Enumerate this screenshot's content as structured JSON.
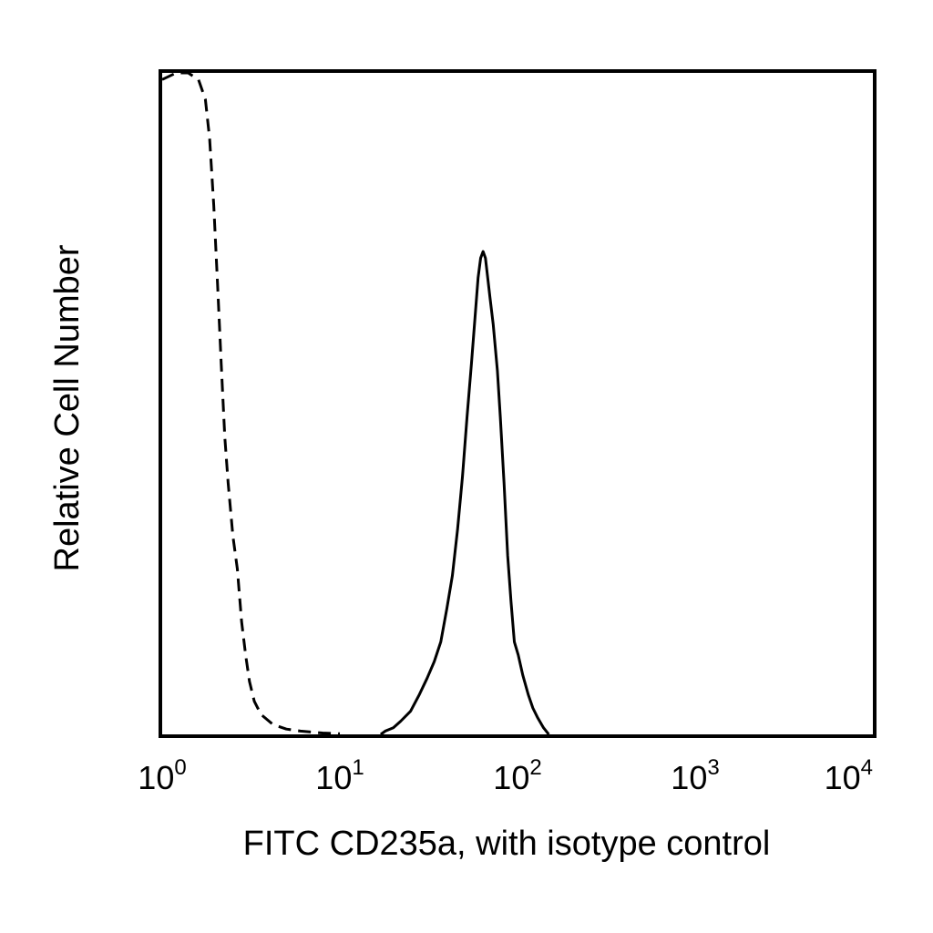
{
  "chart_data": {
    "type": "line",
    "title": "",
    "xlabel": "FITC CD235a, with isotype control",
    "ylabel": "Relative Cell Number",
    "x_scale": "log",
    "xlim": [
      1,
      10000
    ],
    "ylim": [
      0,
      100
    ],
    "grid": false,
    "legend": "none",
    "x_ticks": [
      {
        "base": "10",
        "exp": "0"
      },
      {
        "base": "10",
        "exp": "1"
      },
      {
        "base": "10",
        "exp": "2"
      },
      {
        "base": "10",
        "exp": "3"
      },
      {
        "base": "10",
        "exp": "4"
      }
    ],
    "series": [
      {
        "style": "dashed",
        "points": [
          [
            1.0,
            99
          ],
          [
            1.2,
            100
          ],
          [
            1.4,
            100
          ],
          [
            1.6,
            99
          ],
          [
            1.75,
            96
          ],
          [
            1.85,
            90
          ],
          [
            1.95,
            80
          ],
          [
            2.05,
            68
          ],
          [
            2.15,
            56
          ],
          [
            2.25,
            45
          ],
          [
            2.35,
            38
          ],
          [
            2.5,
            30
          ],
          [
            2.65,
            25
          ],
          [
            2.8,
            17
          ],
          [
            2.95,
            12
          ],
          [
            3.1,
            8
          ],
          [
            3.3,
            5
          ],
          [
            3.6,
            3
          ],
          [
            4.2,
            1.5
          ],
          [
            5.0,
            0.8
          ],
          [
            6.0,
            0.5
          ],
          [
            8.0,
            0.2
          ],
          [
            10.0,
            0.1
          ]
        ]
      },
      {
        "style": "solid",
        "points": [
          [
            17,
            0
          ],
          [
            18,
            0.5
          ],
          [
            20,
            1
          ],
          [
            22,
            2
          ],
          [
            25,
            3.5
          ],
          [
            28,
            6
          ],
          [
            31,
            8.5
          ],
          [
            34,
            11
          ],
          [
            37,
            14
          ],
          [
            40,
            19
          ],
          [
            43,
            24
          ],
          [
            46,
            31
          ],
          [
            49,
            39
          ],
          [
            52,
            48
          ],
          [
            55,
            56
          ],
          [
            58,
            64
          ],
          [
            60,
            69
          ],
          [
            62,
            72
          ],
          [
            64,
            73
          ],
          [
            66,
            72
          ],
          [
            68,
            69
          ],
          [
            70,
            66
          ],
          [
            73,
            62
          ],
          [
            77,
            55
          ],
          [
            80,
            48
          ],
          [
            84,
            38
          ],
          [
            88,
            27
          ],
          [
            92,
            20
          ],
          [
            96,
            14
          ],
          [
            101,
            12
          ],
          [
            107,
            9
          ],
          [
            115,
            6
          ],
          [
            122,
            4
          ],
          [
            130,
            2.5
          ],
          [
            140,
            1
          ],
          [
            150,
            0
          ]
        ]
      }
    ]
  }
}
